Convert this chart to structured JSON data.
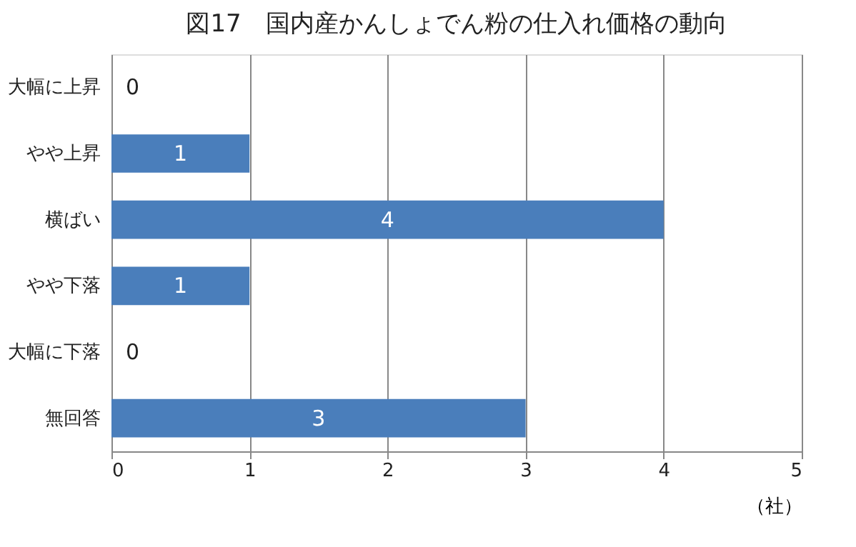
{
  "chart_data": {
    "type": "bar",
    "orientation": "horizontal",
    "title": "図17　国内産かんしょでん粉の仕入れ価格の動向",
    "xlabel": "（社）",
    "categories": [
      "大幅に上昇",
      "やや上昇",
      "横ばい",
      "やや下落",
      "大幅に下落",
      "無回答"
    ],
    "values": [
      0,
      1,
      4,
      1,
      0,
      3
    ],
    "color": "#4a7ebb",
    "xlim": [
      0,
      5
    ],
    "xticks": [
      0,
      1,
      2,
      3,
      4,
      5
    ],
    "grid": "x",
    "data_labels": true
  }
}
